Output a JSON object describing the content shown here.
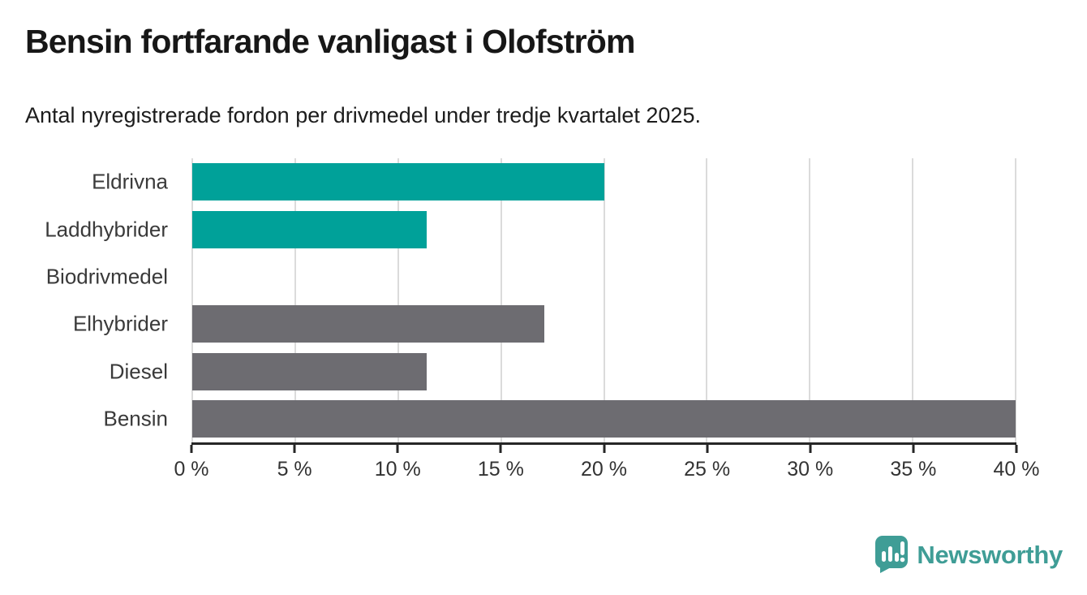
{
  "header": {
    "title": "Bensin fortfarande vanligast i Olofström",
    "subtitle": "Antal nyregistrerade fordon per drivmedel under tredje kvartalet 2025."
  },
  "chart_data": {
    "type": "bar",
    "orientation": "horizontal",
    "title": "Bensin fortfarande vanligast i Olofström",
    "subtitle": "Antal nyregistrerade fordon per drivmedel under tredje kvartalet 2025.",
    "categories": [
      "Eldrivna",
      "Laddhybrider",
      "Biodrivmedel",
      "Elhybrider",
      "Diesel",
      "Bensin"
    ],
    "values": [
      20,
      11.4,
      0,
      17.1,
      11.4,
      40
    ],
    "bar_colors": [
      "#00a199",
      "#00a199",
      "#00a199",
      "#6d6c71",
      "#6d6c71",
      "#6d6c71"
    ],
    "xlim": [
      0,
      40
    ],
    "xticks": [
      0,
      5,
      10,
      15,
      20,
      25,
      30,
      35,
      40
    ],
    "xtick_labels": [
      "0 %",
      "5 %",
      "10 %",
      "15 %",
      "20 %",
      "25 %",
      "30 %",
      "35 %",
      "40 %"
    ],
    "xlabel": "",
    "ylabel": "",
    "grid": true,
    "gridline_color": "#dbdbdb",
    "axis_color": "#262626",
    "legend": "none"
  },
  "branding": {
    "label": "Newsworthy",
    "color": "#3f9d96",
    "icon": "newsworthy-bubble-chart-icon"
  }
}
